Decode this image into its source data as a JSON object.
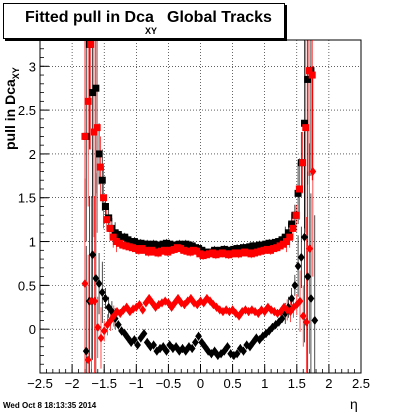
{
  "title": {
    "main": "Fitted pull in Dca",
    "subscript": "XY",
    "tail": "Global Tracks"
  },
  "footer": {
    "timestamp": "Wed Oct  8 18:13:35 2014"
  },
  "chart_data": {
    "type": "scatter",
    "xlabel": "η",
    "ylabel": "pull in Dca",
    "ylabel_subscript": "XY",
    "xlim": [
      -2.5,
      2.5
    ],
    "ylim": [
      -0.5,
      3.3
    ],
    "x_ticks": [
      "−2.5",
      "−2",
      "−1.5",
      "−1",
      "−0.5",
      "0",
      "0.5",
      "1",
      "1.5",
      "2",
      "2.5"
    ],
    "x_tick_values": [
      -2.5,
      -2,
      -1.5,
      -1,
      -0.5,
      0,
      0.5,
      1,
      1.5,
      2,
      2.5
    ],
    "y_ticks": [
      "0",
      "0.5",
      "1",
      "1.5",
      "2",
      "2.5",
      "3"
    ],
    "y_tick_values": [
      0,
      0.5,
      1,
      1.5,
      2,
      2.5,
      3
    ],
    "grid": true,
    "series": [
      {
        "color": "#000000",
        "marker": "square",
        "points": [
          [
            -1.78,
            2.2
          ],
          [
            -1.73,
            3.25
          ],
          [
            -1.68,
            2.7
          ],
          [
            -1.63,
            2.75
          ],
          [
            -1.58,
            2.0
          ],
          [
            -1.53,
            1.7
          ],
          [
            -1.48,
            1.4
          ],
          [
            -1.43,
            1.27
          ],
          [
            -1.38,
            1.15
          ],
          [
            -1.33,
            1.1
          ],
          [
            -1.28,
            1.08
          ],
          [
            -1.23,
            1.05
          ],
          [
            -1.18,
            1.05
          ],
          [
            -1.13,
            1.02
          ],
          [
            -1.08,
            1.0
          ],
          [
            -1.03,
            1.0
          ],
          [
            -0.98,
            0.98
          ],
          [
            -0.93,
            0.98
          ],
          [
            -0.88,
            0.97
          ],
          [
            -0.83,
            0.97
          ],
          [
            -0.78,
            0.96
          ],
          [
            -0.73,
            0.97
          ],
          [
            -0.68,
            0.96
          ],
          [
            -0.63,
            0.96
          ],
          [
            -0.58,
            0.97
          ],
          [
            -0.53,
            0.98
          ],
          [
            -0.48,
            0.97
          ],
          [
            -0.43,
            0.96
          ],
          [
            -0.38,
            0.95
          ],
          [
            -0.33,
            0.97
          ],
          [
            -0.28,
            0.96
          ],
          [
            -0.23,
            0.97
          ],
          [
            -0.18,
            0.96
          ],
          [
            -0.13,
            0.95
          ],
          [
            -0.08,
            0.93
          ],
          [
            -0.03,
            0.92
          ],
          [
            0.02,
            0.9
          ],
          [
            0.07,
            0.88
          ],
          [
            0.12,
            0.87
          ],
          [
            0.17,
            0.88
          ],
          [
            0.22,
            0.9
          ],
          [
            0.27,
            0.89
          ],
          [
            0.32,
            0.9
          ],
          [
            0.37,
            0.91
          ],
          [
            0.42,
            0.9
          ],
          [
            0.47,
            0.9
          ],
          [
            0.52,
            0.91
          ],
          [
            0.57,
            0.92
          ],
          [
            0.62,
            0.92
          ],
          [
            0.67,
            0.93
          ],
          [
            0.72,
            0.93
          ],
          [
            0.77,
            0.94
          ],
          [
            0.82,
            0.95
          ],
          [
            0.87,
            0.95
          ],
          [
            0.92,
            0.96
          ],
          [
            0.97,
            0.96
          ],
          [
            1.02,
            0.97
          ],
          [
            1.07,
            0.98
          ],
          [
            1.12,
            0.98
          ],
          [
            1.17,
            0.99
          ],
          [
            1.22,
            1.0
          ],
          [
            1.27,
            1.02
          ],
          [
            1.32,
            1.05
          ],
          [
            1.37,
            1.1
          ],
          [
            1.42,
            1.2
          ],
          [
            1.47,
            1.3
          ],
          [
            1.52,
            1.55
          ],
          [
            1.57,
            1.9
          ],
          [
            1.62,
            2.35
          ],
          [
            1.67,
            2.85
          ],
          [
            1.72,
            2.95
          ]
        ]
      },
      {
        "color": "#ff0000",
        "marker": "square",
        "points": [
          [
            -1.8,
            2.2
          ],
          [
            -1.75,
            2.6
          ],
          [
            -1.71,
            3.25
          ],
          [
            -1.66,
            2.25
          ],
          [
            -1.61,
            2.3
          ],
          [
            -1.56,
            1.85
          ],
          [
            -1.51,
            1.5
          ],
          [
            -1.46,
            1.25
          ],
          [
            -1.41,
            1.15
          ],
          [
            -1.36,
            1.05
          ],
          [
            -1.31,
            1.0
          ],
          [
            -1.26,
            0.98
          ],
          [
            -1.21,
            0.96
          ],
          [
            -1.16,
            0.95
          ],
          [
            -1.11,
            0.94
          ],
          [
            -1.06,
            0.93
          ],
          [
            -1.01,
            0.92
          ],
          [
            -0.96,
            0.9
          ],
          [
            -0.91,
            0.92
          ],
          [
            -0.86,
            0.9
          ],
          [
            -0.81,
            0.88
          ],
          [
            -0.76,
            0.9
          ],
          [
            -0.71,
            0.88
          ],
          [
            -0.66,
            0.87
          ],
          [
            -0.61,
            0.89
          ],
          [
            -0.56,
            0.9
          ],
          [
            -0.51,
            0.88
          ],
          [
            -0.46,
            0.9
          ],
          [
            -0.41,
            0.91
          ],
          [
            -0.36,
            0.93
          ],
          [
            -0.31,
            0.92
          ],
          [
            -0.26,
            0.9
          ],
          [
            -0.21,
            0.89
          ],
          [
            -0.16,
            0.88
          ],
          [
            -0.11,
            0.9
          ],
          [
            -0.06,
            0.89
          ],
          [
            -0.01,
            0.86
          ],
          [
            0.04,
            0.84
          ],
          [
            0.09,
            0.85
          ],
          [
            0.14,
            0.86
          ],
          [
            0.19,
            0.87
          ],
          [
            0.24,
            0.85
          ],
          [
            0.29,
            0.86
          ],
          [
            0.34,
            0.87
          ],
          [
            0.39,
            0.86
          ],
          [
            0.44,
            0.85
          ],
          [
            0.49,
            0.86
          ],
          [
            0.54,
            0.87
          ],
          [
            0.59,
            0.86
          ],
          [
            0.64,
            0.87
          ],
          [
            0.69,
            0.88
          ],
          [
            0.74,
            0.87
          ],
          [
            0.79,
            0.86
          ],
          [
            0.84,
            0.87
          ],
          [
            0.89,
            0.88
          ],
          [
            0.94,
            0.89
          ],
          [
            0.99,
            0.9
          ],
          [
            1.04,
            0.91
          ],
          [
            1.09,
            0.9
          ],
          [
            1.14,
            0.92
          ],
          [
            1.19,
            0.93
          ],
          [
            1.24,
            0.95
          ],
          [
            1.29,
            0.97
          ],
          [
            1.34,
            1.0
          ],
          [
            1.39,
            1.05
          ],
          [
            1.44,
            1.15
          ],
          [
            1.49,
            1.3
          ],
          [
            1.54,
            1.6
          ],
          [
            1.59,
            1.9
          ],
          [
            1.64,
            2.3
          ],
          [
            1.69,
            2.95
          ],
          [
            1.74,
            2.9
          ]
        ]
      },
      {
        "color": "#000000",
        "marker": "diamond",
        "points": [
          [
            -1.78,
            -0.25
          ],
          [
            -1.73,
            0.32
          ],
          [
            -1.68,
            0.85
          ],
          [
            -1.63,
            0.58
          ],
          [
            -1.58,
            0.52
          ],
          [
            -1.53,
            0.42
          ],
          [
            -1.48,
            0.35
          ],
          [
            -1.43,
            0.25
          ],
          [
            -1.38,
            0.2
          ],
          [
            -1.33,
            0.12
          ],
          [
            -1.28,
            0.05
          ],
          [
            -1.23,
            -0.02
          ],
          [
            -1.18,
            -0.05
          ],
          [
            -1.13,
            -0.1
          ],
          [
            -1.08,
            -0.15
          ],
          [
            -1.03,
            -0.12
          ],
          [
            -0.98,
            -0.18
          ],
          [
            -0.93,
            -0.1
          ],
          [
            -0.88,
            -0.05
          ],
          [
            -0.83,
            -0.15
          ],
          [
            -0.78,
            -0.2
          ],
          [
            -0.73,
            -0.18
          ],
          [
            -0.68,
            -0.25
          ],
          [
            -0.63,
            -0.22
          ],
          [
            -0.58,
            -0.2
          ],
          [
            -0.53,
            -0.25
          ],
          [
            -0.48,
            -0.18
          ],
          [
            -0.43,
            -0.22
          ],
          [
            -0.38,
            -0.2
          ],
          [
            -0.33,
            -0.25
          ],
          [
            -0.28,
            -0.22
          ],
          [
            -0.23,
            -0.25
          ],
          [
            -0.18,
            -0.2
          ],
          [
            -0.13,
            -0.22
          ],
          [
            -0.08,
            -0.15
          ],
          [
            -0.03,
            -0.08
          ],
          [
            0.02,
            -0.15
          ],
          [
            0.07,
            -0.2
          ],
          [
            0.12,
            -0.25
          ],
          [
            0.17,
            -0.28
          ],
          [
            0.22,
            -0.25
          ],
          [
            0.27,
            -0.3
          ],
          [
            0.32,
            -0.28
          ],
          [
            0.37,
            -0.25
          ],
          [
            0.42,
            -0.2
          ],
          [
            0.47,
            -0.28
          ],
          [
            0.52,
            -0.3
          ],
          [
            0.57,
            -0.28
          ],
          [
            0.62,
            -0.22
          ],
          [
            0.67,
            -0.25
          ],
          [
            0.72,
            -0.18
          ],
          [
            0.77,
            -0.2
          ],
          [
            0.82,
            -0.15
          ],
          [
            0.87,
            -0.1
          ],
          [
            0.92,
            -0.12
          ],
          [
            0.97,
            -0.08
          ],
          [
            1.02,
            -0.05
          ],
          [
            1.07,
            -0.02
          ],
          [
            1.12,
            0.02
          ],
          [
            1.17,
            0.05
          ],
          [
            1.22,
            0.08
          ],
          [
            1.27,
            0.12
          ],
          [
            1.32,
            0.18
          ],
          [
            1.37,
            0.25
          ],
          [
            1.42,
            0.35
          ],
          [
            1.47,
            0.5
          ],
          [
            1.52,
            0.72
          ],
          [
            1.57,
            0.82
          ],
          [
            1.62,
            1.05
          ],
          [
            1.67,
            0.6
          ],
          [
            1.72,
            0.35
          ],
          [
            1.78,
            0.1
          ]
        ]
      },
      {
        "color": "#ff0000",
        "marker": "diamond",
        "points": [
          [
            -1.8,
            0.52
          ],
          [
            -1.75,
            -0.35
          ],
          [
            -1.7,
            0.32
          ],
          [
            -1.65,
            0.32
          ],
          [
            -1.6,
            0.02
          ],
          [
            -1.55,
            -0.1
          ],
          [
            -1.5,
            -0.02
          ],
          [
            -1.45,
            0.05
          ],
          [
            -1.4,
            0.1
          ],
          [
            -1.35,
            0.15
          ],
          [
            -1.3,
            0.2
          ],
          [
            -1.25,
            0.18
          ],
          [
            -1.2,
            0.22
          ],
          [
            -1.15,
            0.25
          ],
          [
            -1.1,
            0.2
          ],
          [
            -1.05,
            0.23
          ],
          [
            -1.0,
            0.25
          ],
          [
            -0.95,
            0.28
          ],
          [
            -0.9,
            0.22
          ],
          [
            -0.85,
            0.3
          ],
          [
            -0.8,
            0.35
          ],
          [
            -0.75,
            0.3
          ],
          [
            -0.7,
            0.25
          ],
          [
            -0.65,
            0.28
          ],
          [
            -0.6,
            0.3
          ],
          [
            -0.55,
            0.32
          ],
          [
            -0.5,
            0.3
          ],
          [
            -0.45,
            0.25
          ],
          [
            -0.4,
            0.3
          ],
          [
            -0.35,
            0.35
          ],
          [
            -0.3,
            0.3
          ],
          [
            -0.25,
            0.28
          ],
          [
            -0.2,
            0.32
          ],
          [
            -0.15,
            0.35
          ],
          [
            -0.1,
            0.3
          ],
          [
            -0.05,
            0.28
          ],
          [
            0.0,
            0.32
          ],
          [
            0.05,
            0.3
          ],
          [
            0.1,
            0.35
          ],
          [
            0.15,
            0.32
          ],
          [
            0.2,
            0.28
          ],
          [
            0.25,
            0.25
          ],
          [
            0.3,
            0.22
          ],
          [
            0.35,
            0.2
          ],
          [
            0.4,
            0.22
          ],
          [
            0.45,
            0.2
          ],
          [
            0.5,
            0.22
          ],
          [
            0.55,
            0.18
          ],
          [
            0.6,
            0.15
          ],
          [
            0.65,
            0.2
          ],
          [
            0.7,
            0.22
          ],
          [
            0.75,
            0.2
          ],
          [
            0.8,
            0.22
          ],
          [
            0.85,
            0.2
          ],
          [
            0.9,
            0.18
          ],
          [
            0.95,
            0.22
          ],
          [
            1.0,
            0.2
          ],
          [
            1.05,
            0.25
          ],
          [
            1.1,
            0.22
          ],
          [
            1.15,
            0.2
          ],
          [
            1.2,
            0.18
          ],
          [
            1.25,
            0.2
          ],
          [
            1.3,
            0.25
          ],
          [
            1.35,
            0.22
          ],
          [
            1.4,
            0.2
          ],
          [
            1.45,
            0.25
          ],
          [
            1.5,
            0.28
          ],
          [
            1.55,
            0.32
          ],
          [
            1.6,
            0.15
          ],
          [
            1.65,
            0.08
          ],
          [
            1.7,
            0.92
          ],
          [
            1.75,
            1.8
          ]
        ]
      }
    ]
  }
}
